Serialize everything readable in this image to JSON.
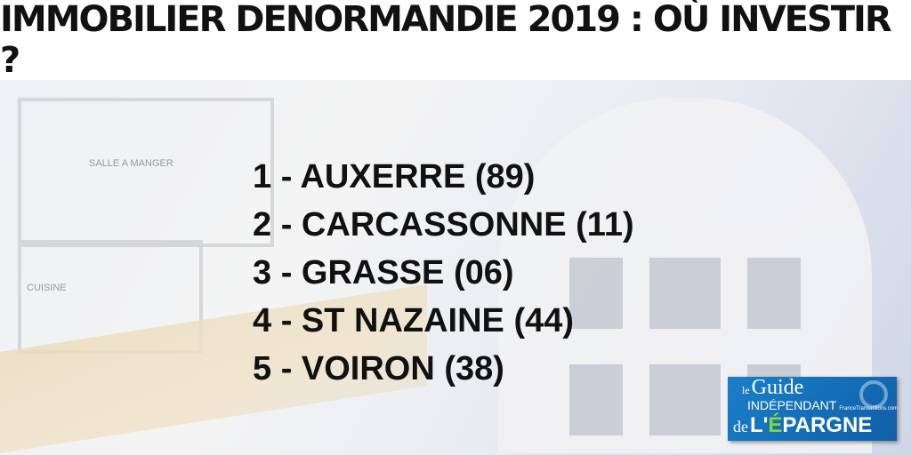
{
  "title": "IMMOBILIER DENORMANDIE 2019 : OÙ INVESTIR ?",
  "background_labels": [
    "SALLE A MANGER",
    "CUISINE"
  ],
  "list": [
    "1 - AUXERRE (89)",
    "2 - CARCASSONNE (11)",
    "3 - GRASSE (06)",
    "4 - ST NAZAINE (44)",
    "5 - VOIRON (38)"
  ],
  "logo": {
    "le": "le",
    "guide": "Guide",
    "independant": "INDÉPENDANT",
    "de": "de",
    "epargne_l": "L'",
    "epargne_e": "É",
    "epargne_rest": "PARGNE",
    "partner": "FranceTransactions.com",
    "colors": {
      "background": "#1a7fc9",
      "accent": "#8bd23c"
    }
  }
}
